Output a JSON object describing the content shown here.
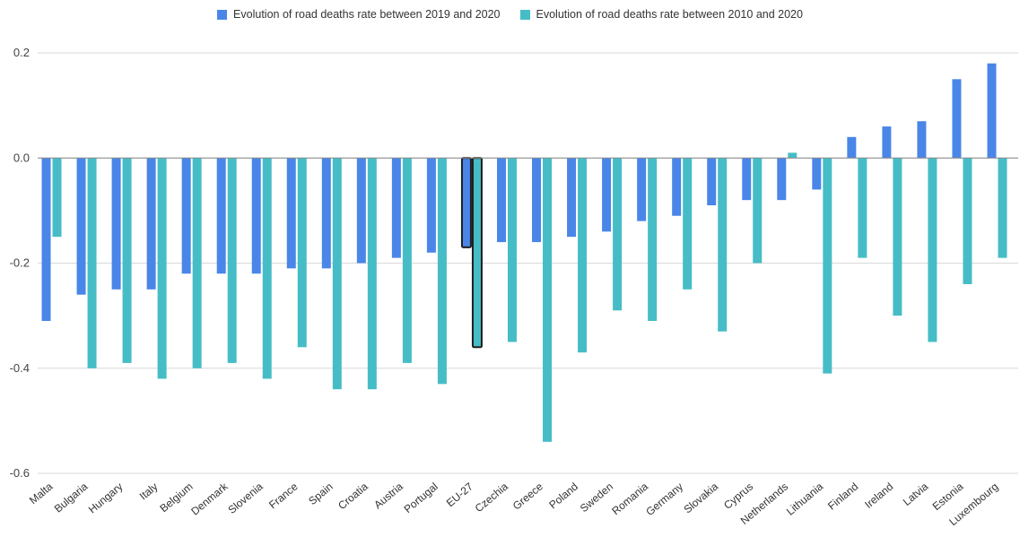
{
  "colors": {
    "series1": "#4a86e8",
    "series2": "#46bdc6",
    "highlight_stroke": "#1f1f1f",
    "grid": "#d9d9d9",
    "zero_line": "#888888"
  },
  "chart_data": {
    "type": "bar",
    "title": "",
    "xlabel": "",
    "ylabel": "",
    "ylim": [
      -0.6,
      0.2
    ],
    "yticks": [
      "0.2",
      "0.0",
      "-0.2",
      "-0.4",
      "-0.6"
    ],
    "grid": true,
    "legend_position": "top",
    "highlight_category": "EU-27",
    "categories": [
      "Malta",
      "Bulgaria",
      "Hungary",
      "Italy",
      "Belgium",
      "Denmark",
      "Slovenia",
      "France",
      "Spain",
      "Croatia",
      "Austria",
      "Portugal",
      "EU-27",
      "Czechia",
      "Greece",
      "Poland",
      "Sweden",
      "Romania",
      "Germany",
      "Slovakia",
      "Cyprus",
      "Netherlands",
      "Lithuania",
      "Finland",
      "Ireland",
      "Latvia",
      "Estonia",
      "Luxembourg"
    ],
    "series": [
      {
        "name": "Evolution of road deaths rate between 2019 and 2020",
        "values": [
          -0.31,
          -0.26,
          -0.25,
          -0.25,
          -0.22,
          -0.22,
          -0.22,
          -0.21,
          -0.21,
          -0.2,
          -0.19,
          -0.18,
          -0.17,
          -0.16,
          -0.16,
          -0.15,
          -0.14,
          -0.12,
          -0.11,
          -0.09,
          -0.08,
          -0.08,
          -0.06,
          0.04,
          0.06,
          0.07,
          0.15,
          0.18
        ]
      },
      {
        "name": "Evolution of road deaths rate between 2010 and 2020",
        "values": [
          -0.15,
          -0.4,
          -0.39,
          -0.42,
          -0.4,
          -0.39,
          -0.42,
          -0.36,
          -0.44,
          -0.44,
          -0.39,
          -0.43,
          -0.36,
          -0.35,
          -0.54,
          -0.37,
          -0.29,
          -0.31,
          -0.25,
          -0.33,
          -0.2,
          0.01,
          -0.41,
          -0.19,
          -0.3,
          -0.35,
          -0.24,
          -0.19
        ]
      }
    ]
  }
}
